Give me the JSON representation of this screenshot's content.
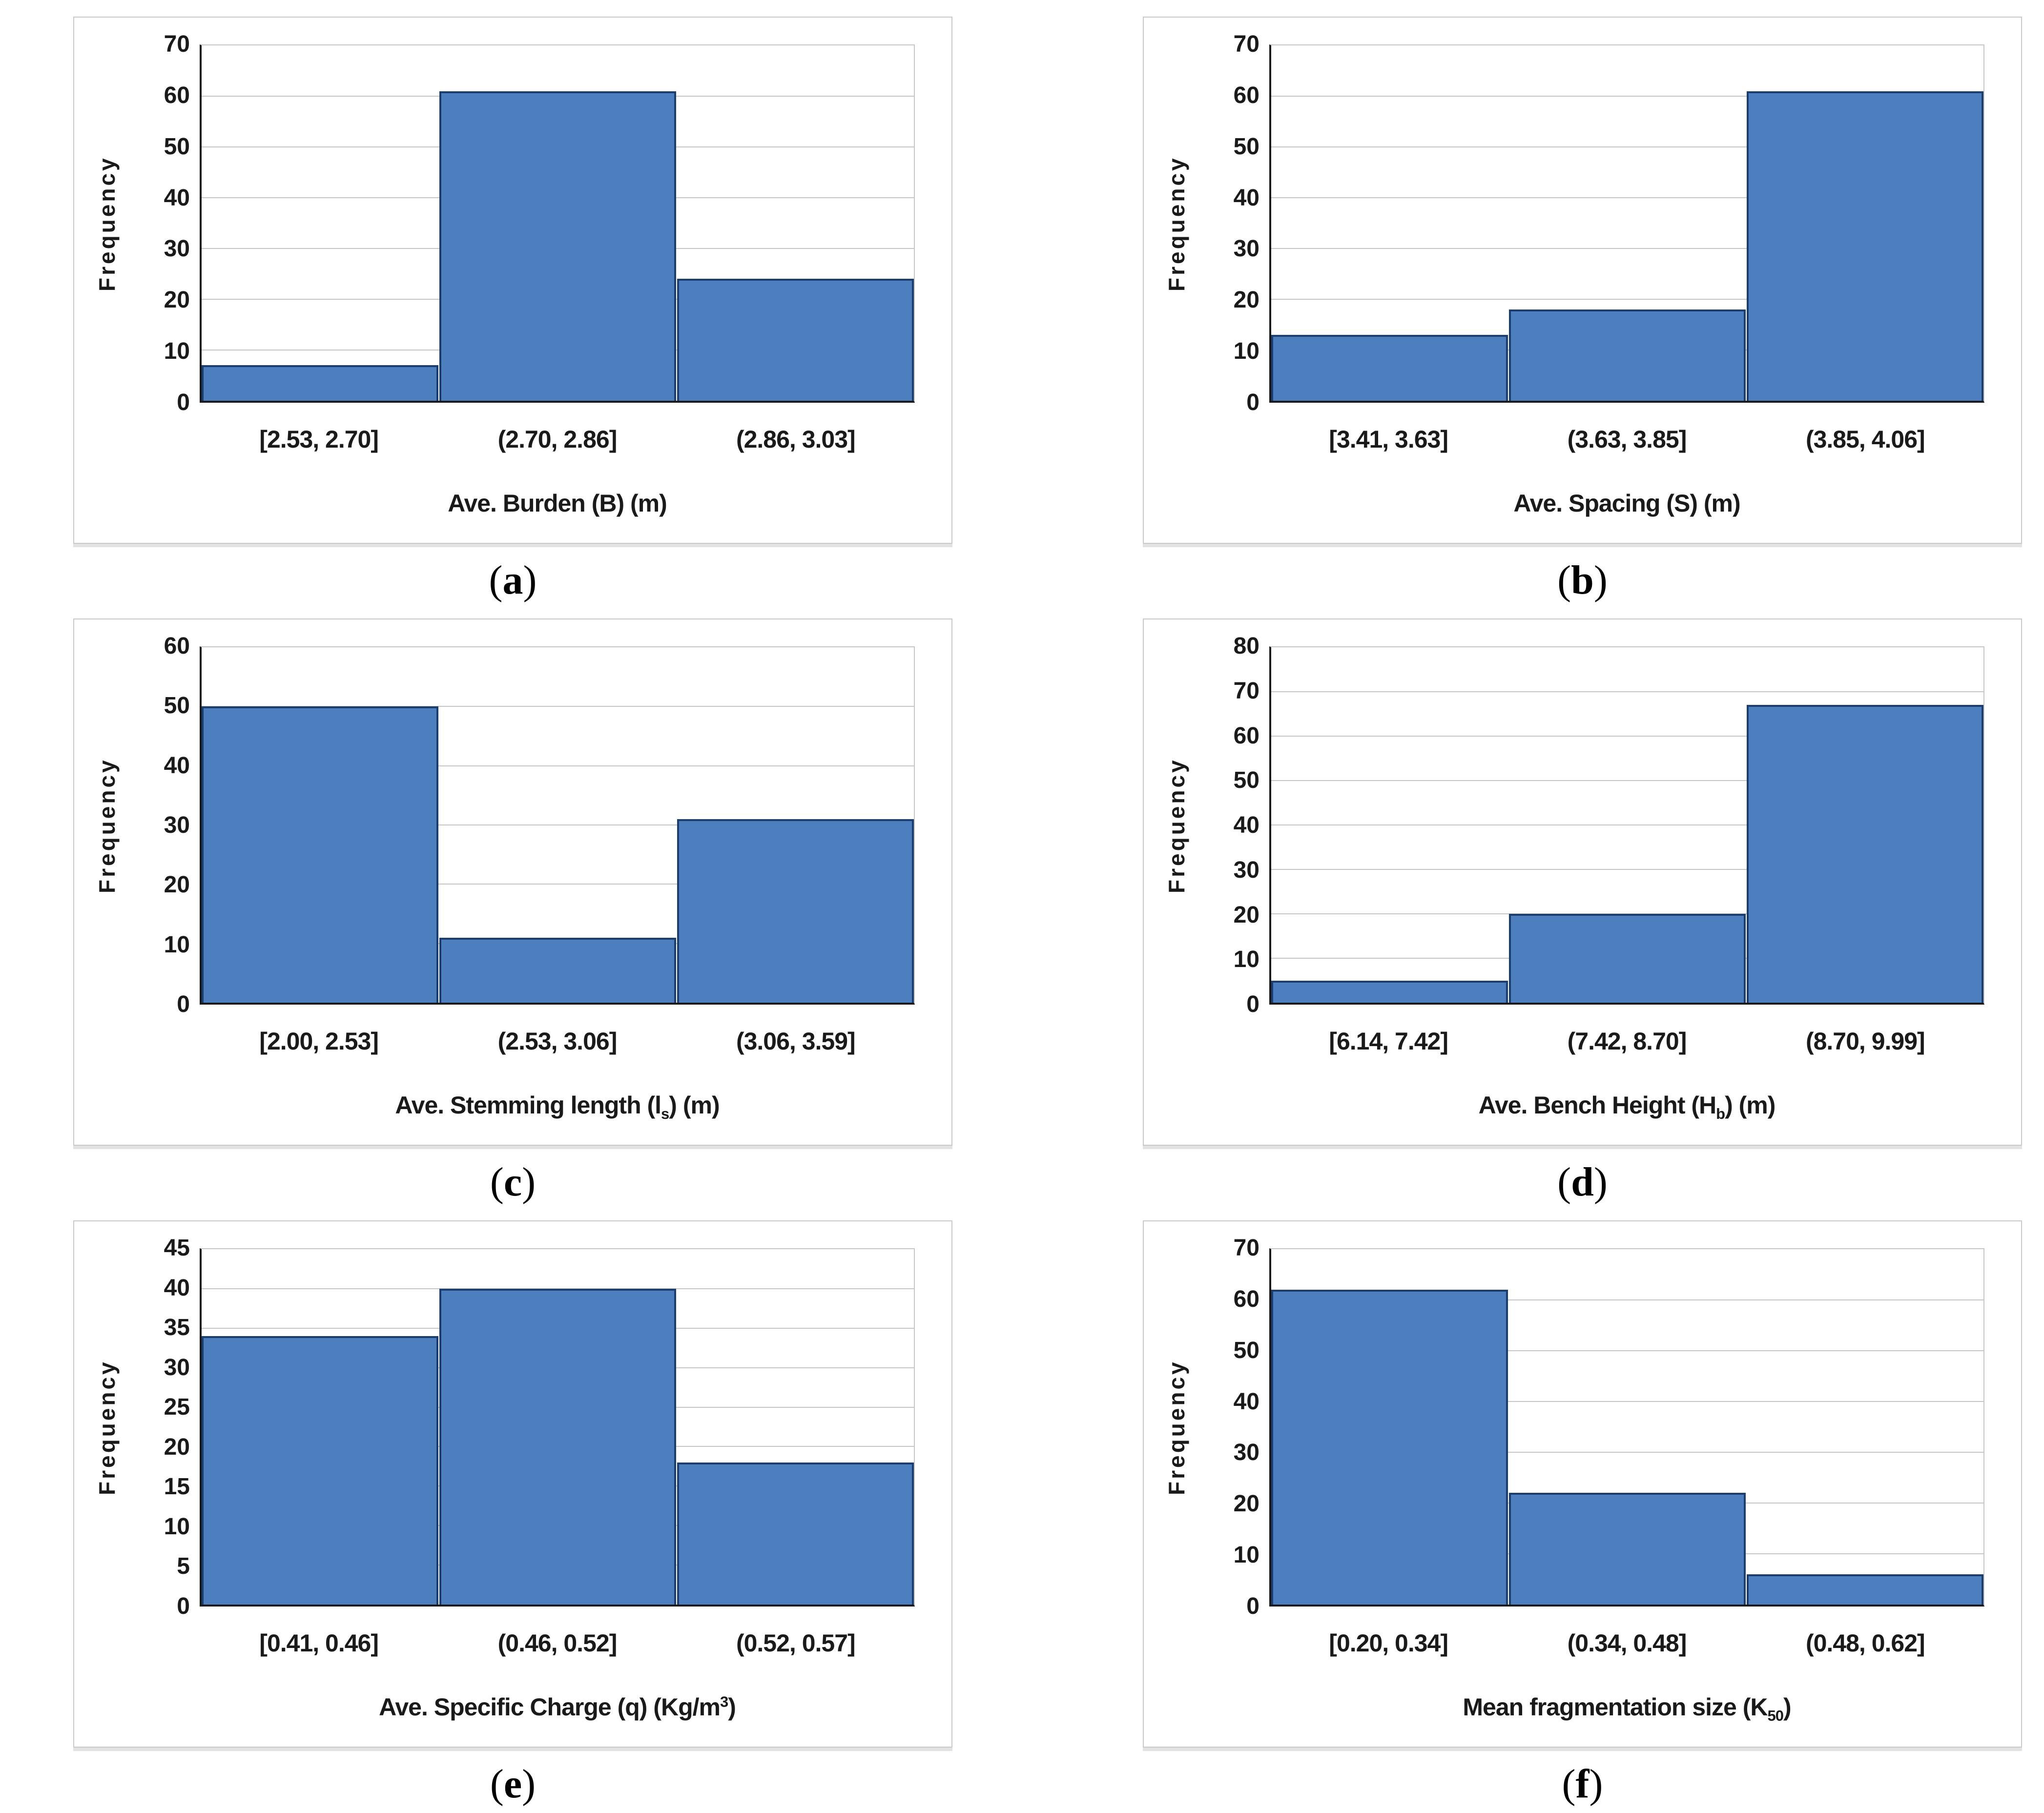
{
  "colors": {
    "bar_fill": "#4d7ebd",
    "bar_border": "#1c3e6e",
    "gridline": "#c6c6c6",
    "axis": "#1a1a1a",
    "panel_border": "#c9c9c9"
  },
  "chart_data": [
    {
      "type": "bar",
      "panel": "a",
      "caption": "a",
      "ylabel": "Frequency",
      "xlabel": {
        "pre": "Ave. Burden (B) (m)",
        "sub": "",
        "sup": "",
        "post": ""
      },
      "categories": [
        "[2.53, 2.70]",
        "(2.70, 2.86]",
        "(2.86, 3.03]"
      ],
      "values": [
        7,
        61,
        24
      ],
      "ylim": [
        0,
        70
      ],
      "yticks": [
        0,
        10,
        20,
        30,
        40,
        50,
        60,
        70
      ],
      "grid": "horizontal",
      "legend": "none"
    },
    {
      "type": "bar",
      "panel": "b",
      "caption": "b",
      "ylabel": "Frequency",
      "xlabel": {
        "pre": "Ave. Spacing (S) (m)",
        "sub": "",
        "sup": "",
        "post": ""
      },
      "categories": [
        "[3.41, 3.63]",
        "(3.63, 3.85]",
        "(3.85, 4.06]"
      ],
      "values": [
        13,
        18,
        61
      ],
      "ylim": [
        0,
        70
      ],
      "yticks": [
        0,
        10,
        20,
        30,
        40,
        50,
        60,
        70
      ],
      "grid": "horizontal",
      "legend": "none"
    },
    {
      "type": "bar",
      "panel": "c",
      "caption": "c",
      "ylabel": "Frequency",
      "xlabel": {
        "pre": "Ave. Stemming length (l",
        "sub": "s",
        "sup": "",
        "post": ") (m)"
      },
      "categories": [
        "[2.00, 2.53]",
        "(2.53, 3.06]",
        "(3.06, 3.59]"
      ],
      "values": [
        50,
        11,
        31
      ],
      "ylim": [
        0,
        60
      ],
      "yticks": [
        0,
        10,
        20,
        30,
        40,
        50,
        60
      ],
      "grid": "horizontal",
      "legend": "none"
    },
    {
      "type": "bar",
      "panel": "d",
      "caption": "d",
      "ylabel": "Frequency",
      "xlabel": {
        "pre": "Ave. Bench Height (H",
        "sub": "b",
        "sup": "",
        "post": ") (m)"
      },
      "categories": [
        "[6.14, 7.42]",
        "(7.42, 8.70]",
        "(8.70, 9.99]"
      ],
      "values": [
        5,
        20,
        67
      ],
      "ylim": [
        0,
        80
      ],
      "yticks": [
        0,
        10,
        20,
        30,
        40,
        50,
        60,
        70,
        80
      ],
      "grid": "horizontal",
      "legend": "none"
    },
    {
      "type": "bar",
      "panel": "e",
      "caption": "e",
      "ylabel": "Frequency",
      "xlabel": {
        "pre": "Ave. Specific Charge (q) (Kg/m",
        "sub": "",
        "sup": "3",
        "post": ")"
      },
      "categories": [
        "[0.41, 0.46]",
        "(0.46, 0.52]",
        "(0.52, 0.57]"
      ],
      "values": [
        34,
        40,
        18
      ],
      "ylim": [
        0,
        45
      ],
      "yticks": [
        0,
        5,
        10,
        15,
        20,
        25,
        30,
        35,
        40,
        45
      ],
      "grid": "horizontal",
      "legend": "none"
    },
    {
      "type": "bar",
      "panel": "f",
      "caption": "f",
      "ylabel": "Frequency",
      "xlabel": {
        "pre": "Mean fragmentation size (K",
        "sub": "50",
        "sup": "",
        "post": ")"
      },
      "categories": [
        "[0.20, 0.34]",
        "(0.34, 0.48]",
        "(0.48, 0.62]"
      ],
      "values": [
        62,
        22,
        6
      ],
      "ylim": [
        0,
        70
      ],
      "yticks": [
        0,
        10,
        20,
        30,
        40,
        50,
        60,
        70
      ],
      "grid": "horizontal",
      "legend": "none"
    }
  ]
}
